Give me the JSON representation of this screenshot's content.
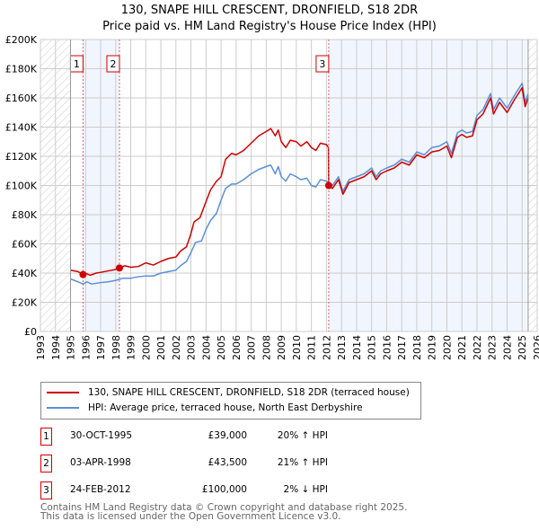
{
  "chart_data": {
    "type": "line",
    "title": "130, SNAPE HILL CRESCENT, DRONFIELD, S18 2DR",
    "subtitle": "Price paid vs. HM Land Registry's House Price Index (HPI)",
    "xlim": [
      1993,
      2026
    ],
    "ylim": [
      0,
      200000
    ],
    "x_ticks": [
      "1993",
      "1994",
      "1995",
      "1996",
      "1997",
      "1998",
      "1999",
      "2000",
      "2001",
      "2002",
      "2003",
      "2004",
      "2005",
      "2006",
      "2007",
      "2008",
      "2009",
      "2010",
      "2011",
      "2012",
      "2013",
      "2014",
      "2015",
      "2016",
      "2017",
      "2018",
      "2019",
      "2020",
      "2021",
      "2022",
      "2023",
      "2024",
      "2025",
      "2026"
    ],
    "y_ticks": [
      {
        "v": 0,
        "label": "£0"
      },
      {
        "v": 20000,
        "label": "£20K"
      },
      {
        "v": 40000,
        "label": "£40K"
      },
      {
        "v": 60000,
        "label": "£60K"
      },
      {
        "v": 80000,
        "label": "£80K"
      },
      {
        "v": 100000,
        "label": "£100K"
      },
      {
        "v": 120000,
        "label": "£120K"
      },
      {
        "v": 140000,
        "label": "£140K"
      },
      {
        "v": 160000,
        "label": "£160K"
      },
      {
        "v": 180000,
        "label": "£180K"
      },
      {
        "v": 200000,
        "label": "£200K"
      }
    ],
    "grid": true,
    "hatched_ranges": [
      [
        1993,
        1995
      ],
      [
        2025.4,
        2026
      ]
    ],
    "shaded_ranges": [
      [
        1995.83,
        1998.25
      ],
      [
        2012.15,
        2025.4
      ]
    ],
    "series": [
      {
        "name": "130, SNAPE HILL CRESCENT, DRONFIELD, S18 2DR (terraced house)",
        "color": "#cc0000",
        "points": [
          [
            1995,
            42000
          ],
          [
            1995.5,
            41000
          ],
          [
            1995.83,
            39000
          ],
          [
            1996,
            40000
          ],
          [
            1996.3,
            38500
          ],
          [
            1996.7,
            40000
          ],
          [
            1997,
            40500
          ],
          [
            1997.5,
            41500
          ],
          [
            1998,
            42500
          ],
          [
            1998.25,
            43500
          ],
          [
            1998.6,
            45000
          ],
          [
            1999,
            44000
          ],
          [
            1999.5,
            44500
          ],
          [
            2000,
            47000
          ],
          [
            2000.5,
            45500
          ],
          [
            2001,
            48000
          ],
          [
            2001.5,
            50000
          ],
          [
            2002,
            51000
          ],
          [
            2002.3,
            55000
          ],
          [
            2002.7,
            58000
          ],
          [
            2003,
            67000
          ],
          [
            2003.2,
            75000
          ],
          [
            2003.6,
            78000
          ],
          [
            2004,
            89000
          ],
          [
            2004.3,
            97000
          ],
          [
            2004.7,
            103000
          ],
          [
            2005,
            106000
          ],
          [
            2005.3,
            118000
          ],
          [
            2005.7,
            122000
          ],
          [
            2006,
            121000
          ],
          [
            2006.5,
            124000
          ],
          [
            2007,
            129000
          ],
          [
            2007.5,
            134000
          ],
          [
            2008,
            137000
          ],
          [
            2008.3,
            139000
          ],
          [
            2008.6,
            134000
          ],
          [
            2008.8,
            138000
          ],
          [
            2009,
            130000
          ],
          [
            2009.3,
            126000
          ],
          [
            2009.6,
            131000
          ],
          [
            2010,
            130000
          ],
          [
            2010.3,
            127000
          ],
          [
            2010.7,
            130000
          ],
          [
            2011,
            126000
          ],
          [
            2011.3,
            124000
          ],
          [
            2011.6,
            129000
          ],
          [
            2012,
            128000
          ],
          [
            2012.13,
            126000
          ],
          [
            2012.15,
            100000
          ],
          [
            2012.4,
            98000
          ],
          [
            2012.8,
            104000
          ],
          [
            2013.1,
            94000
          ],
          [
            2013.5,
            102000
          ],
          [
            2014,
            104000
          ],
          [
            2014.5,
            106000
          ],
          [
            2015,
            110000
          ],
          [
            2015.3,
            104000
          ],
          [
            2015.6,
            108000
          ],
          [
            2016,
            110000
          ],
          [
            2016.5,
            112000
          ],
          [
            2017,
            116000
          ],
          [
            2017.5,
            114000
          ],
          [
            2018,
            121000
          ],
          [
            2018.5,
            119000
          ],
          [
            2019,
            123000
          ],
          [
            2019.5,
            124000
          ],
          [
            2020,
            127000
          ],
          [
            2020.3,
            119000
          ],
          [
            2020.7,
            133000
          ],
          [
            2021,
            135000
          ],
          [
            2021.3,
            133000
          ],
          [
            2021.7,
            134000
          ],
          [
            2022,
            145000
          ],
          [
            2022.4,
            149000
          ],
          [
            2022.9,
            160000
          ],
          [
            2023.1,
            149000
          ],
          [
            2023.5,
            157000
          ],
          [
            2024,
            150000
          ],
          [
            2024.5,
            159000
          ],
          [
            2025,
            167000
          ],
          [
            2025.2,
            154000
          ],
          [
            2025.4,
            160000
          ]
        ]
      },
      {
        "name": "HPI: Average price, terraced house, North East Derbyshire",
        "color": "#5b8fd4",
        "points": [
          [
            1995,
            36000
          ],
          [
            1995.5,
            34000
          ],
          [
            1995.83,
            32500
          ],
          [
            1996.1,
            34000
          ],
          [
            1996.4,
            32500
          ],
          [
            1997,
            33500
          ],
          [
            1997.5,
            34000
          ],
          [
            1998,
            35000
          ],
          [
            1998.5,
            36500
          ],
          [
            1999,
            36500
          ],
          [
            1999.5,
            37500
          ],
          [
            2000,
            38000
          ],
          [
            2000.5,
            38000
          ],
          [
            2001,
            40000
          ],
          [
            2001.5,
            41000
          ],
          [
            2002,
            42000
          ],
          [
            2002.3,
            45000
          ],
          [
            2002.7,
            48000
          ],
          [
            2003,
            54000
          ],
          [
            2003.3,
            61000
          ],
          [
            2003.7,
            62000
          ],
          [
            2004,
            70000
          ],
          [
            2004.3,
            76000
          ],
          [
            2004.7,
            81000
          ],
          [
            2005,
            90000
          ],
          [
            2005.3,
            98000
          ],
          [
            2005.7,
            101000
          ],
          [
            2006,
            101000
          ],
          [
            2006.5,
            104000
          ],
          [
            2007,
            108000
          ],
          [
            2007.5,
            111000
          ],
          [
            2008,
            113000
          ],
          [
            2008.3,
            114000
          ],
          [
            2008.6,
            108000
          ],
          [
            2008.8,
            113000
          ],
          [
            2009,
            106000
          ],
          [
            2009.3,
            103000
          ],
          [
            2009.6,
            108000
          ],
          [
            2010,
            106000
          ],
          [
            2010.3,
            104000
          ],
          [
            2010.7,
            105000
          ],
          [
            2011,
            100000
          ],
          [
            2011.3,
            99000
          ],
          [
            2011.6,
            104000
          ],
          [
            2012,
            103000
          ],
          [
            2012.4,
            100000
          ],
          [
            2012.8,
            106000
          ],
          [
            2013.1,
            96000
          ],
          [
            2013.5,
            104000
          ],
          [
            2014,
            106000
          ],
          [
            2014.5,
            108000
          ],
          [
            2015,
            112000
          ],
          [
            2015.3,
            106000
          ],
          [
            2015.6,
            110000
          ],
          [
            2016,
            112000
          ],
          [
            2016.5,
            114000
          ],
          [
            2017,
            118000
          ],
          [
            2017.5,
            116000
          ],
          [
            2018,
            123000
          ],
          [
            2018.5,
            121000
          ],
          [
            2019,
            126000
          ],
          [
            2019.5,
            127000
          ],
          [
            2020,
            130000
          ],
          [
            2020.3,
            122000
          ],
          [
            2020.7,
            136000
          ],
          [
            2021,
            138000
          ],
          [
            2021.3,
            136000
          ],
          [
            2021.7,
            137000
          ],
          [
            2022,
            148000
          ],
          [
            2022.4,
            152000
          ],
          [
            2022.9,
            163000
          ],
          [
            2023.1,
            152000
          ],
          [
            2023.5,
            160000
          ],
          [
            2024,
            153000
          ],
          [
            2024.5,
            162000
          ],
          [
            2025,
            170000
          ],
          [
            2025.2,
            157000
          ],
          [
            2025.4,
            163000
          ]
        ]
      }
    ],
    "sales": [
      {
        "label": "1",
        "x": 1995.83,
        "y": 39000
      },
      {
        "label": "2",
        "x": 1998.25,
        "y": 43500
      },
      {
        "label": "3",
        "x": 2012.15,
        "y": 100000
      }
    ],
    "legend_position": "below"
  },
  "table": [
    {
      "num": "1",
      "date": "30-OCT-1995",
      "price": "£39,000",
      "hpi": "20% ↑ HPI"
    },
    {
      "num": "2",
      "date": "03-APR-1998",
      "price": "£43,500",
      "hpi": "21% ↑ HPI"
    },
    {
      "num": "3",
      "date": "24-FEB-2012",
      "price": "£100,000",
      "hpi": "2% ↓ HPI"
    }
  ],
  "footer": {
    "line1": "Contains HM Land Registry data © Crown copyright and database right 2025.",
    "line2": "This data is licensed under the Open Government Licence v3.0."
  }
}
